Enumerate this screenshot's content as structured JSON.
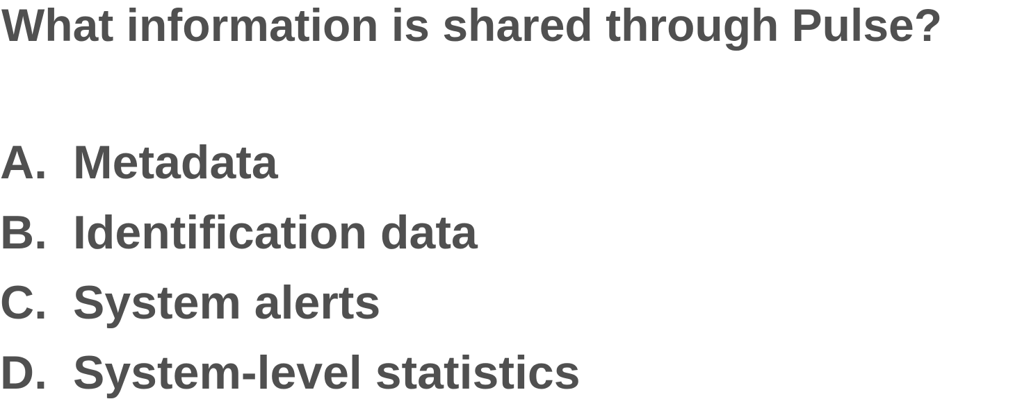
{
  "question": "What information is shared through Pulse?",
  "options": [
    {
      "letter": "A.",
      "text": "Metadata"
    },
    {
      "letter": "B.",
      "text": "Identification data"
    },
    {
      "letter": "C.",
      "text": "System alerts"
    },
    {
      "letter": "D.",
      "text": "System-level statistics"
    }
  ],
  "colors": {
    "text": "#505050",
    "background": "#ffffff"
  }
}
